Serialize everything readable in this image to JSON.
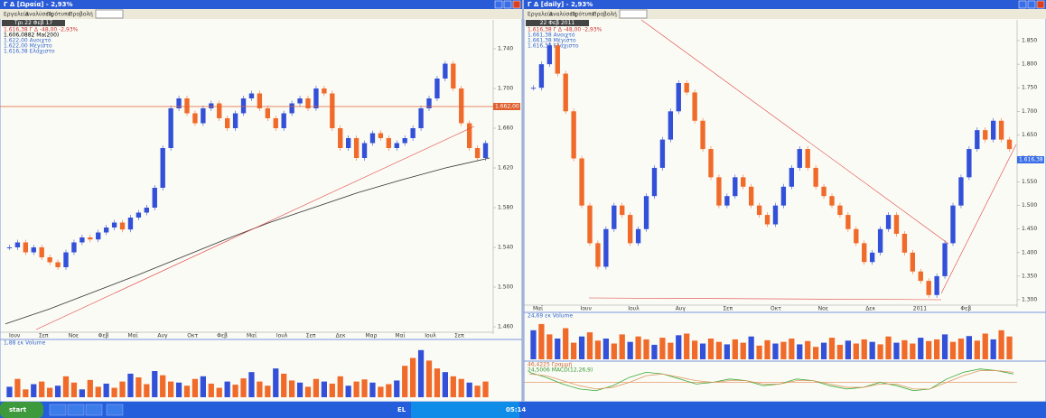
{
  "windows": [
    {
      "title": "Γ Δ [Ωραία] - 2,93%",
      "menu": [
        "Εργαλεία",
        "Αναλύσεις",
        "Πρότυπα",
        "Προβολή"
      ],
      "date_label": "Τρι 22 Φεβ 17",
      "legend": [
        "1.616,38 Γ Δ  -48,00 -2,93%",
        "1.606,0882 Ma(200)",
        "1.622,00 Ανοιχτό",
        "1.622,00 Μέγιστο",
        "1.616,38 Ελάχιστο"
      ],
      "level_label": "1.662,00",
      "price": {
        "ylim": [
          1.46,
          1.76
        ],
        "yticks": [
          {
            "value": 1.46,
            "label": "1.460"
          },
          {
            "value": 1.5,
            "label": "1.500"
          },
          {
            "value": 1.54,
            "label": "1.540"
          },
          {
            "value": 1.58,
            "label": "1.580"
          },
          {
            "value": 1.62,
            "label": "1.620"
          },
          {
            "value": 1.66,
            "label": "1.660"
          },
          {
            "value": 1.7,
            "label": "1.700"
          },
          {
            "value": 1.74,
            "label": "1.740"
          }
        ],
        "closes": [
          1.54,
          1.545,
          1.535,
          1.54,
          1.53,
          1.525,
          1.52,
          1.535,
          1.545,
          1.55,
          1.548,
          1.555,
          1.56,
          1.565,
          1.558,
          1.57,
          1.575,
          1.58,
          1.6,
          1.64,
          1.68,
          1.69,
          1.675,
          1.665,
          1.68,
          1.685,
          1.67,
          1.66,
          1.675,
          1.69,
          1.695,
          1.68,
          1.67,
          1.66,
          1.675,
          1.685,
          1.69,
          1.68,
          1.7,
          1.695,
          1.66,
          1.64,
          1.65,
          1.63,
          1.645,
          1.655,
          1.65,
          1.64,
          1.645,
          1.65,
          1.66,
          1.68,
          1.69,
          1.71,
          1.725,
          1.7,
          1.665,
          1.64,
          1.63,
          1.645
        ],
        "ma": [
          1.463,
          1.478,
          1.495,
          1.512,
          1.53,
          1.548,
          1.565,
          1.58,
          1.595,
          1.608,
          1.62,
          1.63
        ]
      },
      "x_labels": [
        "Ιουν",
        "Σεπ",
        "Νοε",
        "Φεβ",
        "Μαϊ",
        "Αυγ",
        "Οκτ",
        "Φεβ",
        "Μαϊ",
        "Ιουλ",
        "Σεπ",
        "Δεκ",
        "Μαρ",
        "Μαϊ",
        "Ιουλ",
        "Σεπ"
      ],
      "volume": {
        "label": "1,88 εκ Volume",
        "ylim": [
          0,
          100
        ],
        "values": [
          20,
          35,
          15,
          25,
          30,
          18,
          22,
          40,
          28,
          15,
          33,
          20,
          26,
          18,
          30,
          45,
          38,
          25,
          50,
          42,
          30,
          28,
          22,
          35,
          40,
          26,
          18,
          30,
          24,
          36,
          48,
          30,
          22,
          55,
          45,
          32,
          28,
          20,
          35,
          30,
          26,
          40,
          22,
          30,
          34,
          28,
          20,
          25,
          32,
          60,
          75,
          90,
          70,
          55,
          48,
          40,
          35,
          28,
          22,
          30
        ]
      }
    },
    {
      "title": "Γ Δ [daily] - 2,93%",
      "menu": [
        "Εργαλεία",
        "Αναλύσεις",
        "Πρότυπα",
        "Προβολή"
      ],
      "date_label": "22 Φεβ 2011",
      "legend": [
        "1.616,38 Γ Δ  -48,00 -2,93%",
        "1.661,38 Ανοιχτό",
        "1.661,38 Μέγιστο",
        "1.616,38 Ελάχιστο"
      ],
      "level_label": "1.616,38",
      "price": {
        "ylim": [
          1.3,
          1.875
        ],
        "yticks": [
          {
            "value": 1.3,
            "label": "1.300"
          },
          {
            "value": 1.35,
            "label": "1.350"
          },
          {
            "value": 1.4,
            "label": "1.400"
          },
          {
            "value": 1.45,
            "label": "1.450"
          },
          {
            "value": 1.5,
            "label": "1.500"
          },
          {
            "value": 1.55,
            "label": "1.550"
          },
          {
            "value": 1.6,
            "label": "1.600"
          },
          {
            "value": 1.65,
            "label": "1.650"
          },
          {
            "value": 1.7,
            "label": "1.700"
          },
          {
            "value": 1.75,
            "label": "1.750"
          },
          {
            "value": 1.8,
            "label": "1.800"
          },
          {
            "value": 1.85,
            "label": "1.850"
          }
        ],
        "closes": [
          1.75,
          1.8,
          1.84,
          1.78,
          1.7,
          1.6,
          1.5,
          1.42,
          1.37,
          1.45,
          1.5,
          1.48,
          1.42,
          1.45,
          1.52,
          1.58,
          1.64,
          1.7,
          1.76,
          1.74,
          1.68,
          1.62,
          1.56,
          1.5,
          1.52,
          1.56,
          1.54,
          1.5,
          1.48,
          1.46,
          1.5,
          1.54,
          1.58,
          1.62,
          1.58,
          1.54,
          1.52,
          1.5,
          1.48,
          1.45,
          1.42,
          1.38,
          1.4,
          1.45,
          1.48,
          1.44,
          1.4,
          1.36,
          1.34,
          1.31,
          1.35,
          1.42,
          1.5,
          1.56,
          1.62,
          1.66,
          1.64,
          1.68,
          1.64,
          1.62
        ]
      },
      "x_labels": [
        "Μαϊ",
        "Ιουν",
        "Ιουλ",
        "Αυγ",
        "Σεπ",
        "Οκτ",
        "Νοε",
        "Δεκ",
        "2011",
        "Φεβ"
      ],
      "volume": {
        "label": "24,69 εκ Volume",
        "ylim": [
          0,
          100
        ],
        "values": [
          70,
          85,
          60,
          50,
          75,
          40,
          55,
          65,
          45,
          50,
          38,
          60,
          42,
          55,
          48,
          35,
          52,
          40,
          58,
          62,
          45,
          38,
          50,
          42,
          36,
          48,
          40,
          55,
          33,
          46,
          38,
          42,
          50,
          36,
          44,
          30,
          40,
          52,
          35,
          45,
          38,
          48,
          42,
          36,
          55,
          40,
          46,
          38,
          52,
          44,
          48,
          60,
          42,
          50,
          56,
          45,
          62,
          48,
          70,
          55
        ],
        "macd_label": "24,5006 MACD(12,26,9)",
        "signal_label": "46,4225 Γραμμή",
        "macd": [
          0.6,
          0.3,
          -0.1,
          -0.4,
          -0.5,
          -0.2,
          0.3,
          0.6,
          0.5,
          0.2,
          -0.1,
          0.0,
          0.2,
          0.1,
          -0.2,
          -0.1,
          0.2,
          0.1,
          -0.2,
          -0.4,
          -0.3,
          0.0,
          -0.2,
          -0.5,
          -0.4,
          0.2,
          0.6,
          0.8,
          0.7,
          0.5
        ],
        "signal": [
          0.5,
          0.4,
          0.1,
          -0.2,
          -0.4,
          -0.3,
          0.0,
          0.4,
          0.5,
          0.3,
          0.1,
          0.0,
          0.1,
          0.1,
          -0.1,
          -0.1,
          0.1,
          0.1,
          -0.1,
          -0.3,
          -0.3,
          -0.1,
          -0.1,
          -0.4,
          -0.4,
          0.0,
          0.4,
          0.7,
          0.7,
          0.6
        ],
        "macd_ylim": [
          -1,
          1
        ]
      }
    }
  ],
  "taskbar": {
    "start": "start",
    "lang": "EL",
    "clock": "05:14"
  }
}
